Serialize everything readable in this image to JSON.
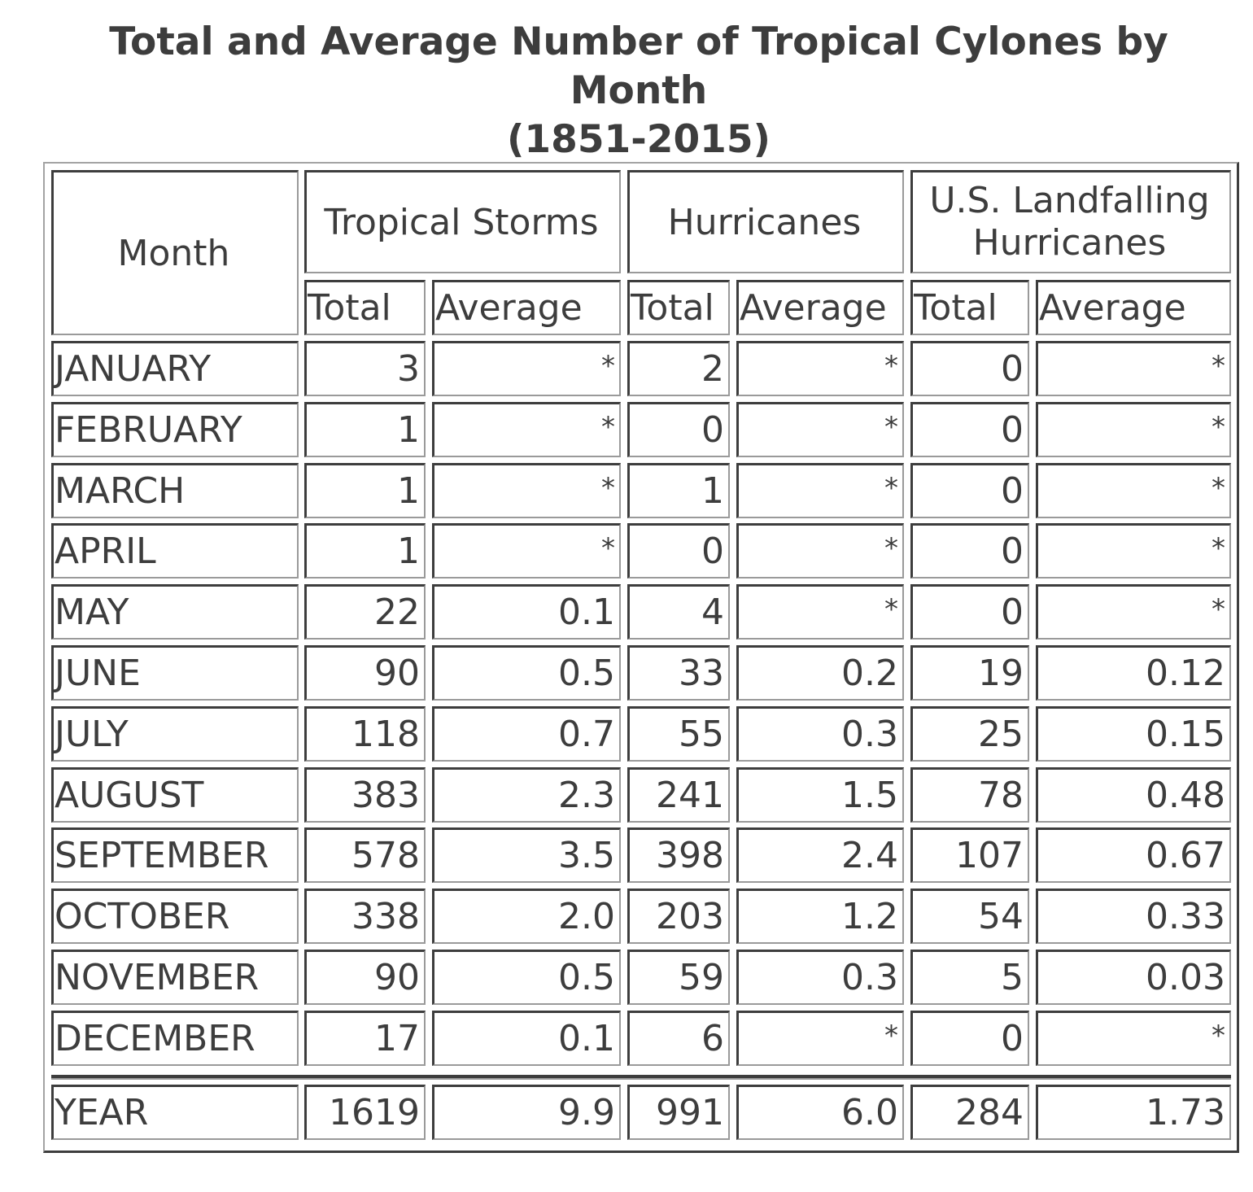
{
  "chart_data": {
    "type": "table",
    "title": [
      "Total and Average Number of Tropical Cylones by",
      "Month",
      "(1851-2015)"
    ],
    "header": {
      "month": "Month",
      "groups": [
        "Tropical Storms",
        "Hurricanes",
        "U.S. Landfalling Hurricanes"
      ],
      "sub": [
        "Total",
        "Average",
        "Total",
        "Average",
        "Total",
        "Average"
      ]
    },
    "rows": [
      {
        "month": "JANUARY",
        "values": [
          "3",
          "*",
          "2",
          "*",
          "0",
          "*"
        ]
      },
      {
        "month": "FEBRUARY",
        "values": [
          "1",
          "*",
          "0",
          "*",
          "0",
          "*"
        ]
      },
      {
        "month": "MARCH",
        "values": [
          "1",
          "*",
          "1",
          "*",
          "0",
          "*"
        ]
      },
      {
        "month": "APRIL",
        "values": [
          "1",
          "*",
          "0",
          "*",
          "0",
          "*"
        ]
      },
      {
        "month": "MAY",
        "values": [
          "22",
          "0.1",
          "4",
          "*",
          "0",
          "*"
        ]
      },
      {
        "month": "JUNE",
        "values": [
          "90",
          "0.5",
          "33",
          "0.2",
          "19",
          "0.12"
        ]
      },
      {
        "month": "JULY",
        "values": [
          "118",
          "0.7",
          "55",
          "0.3",
          "25",
          "0.15"
        ]
      },
      {
        "month": "AUGUST",
        "values": [
          "383",
          "2.3",
          "241",
          "1.5",
          "78",
          "0.48"
        ]
      },
      {
        "month": "SEPTEMBER",
        "values": [
          "578",
          "3.5",
          "398",
          "2.4",
          "107",
          "0.67"
        ]
      },
      {
        "month": "OCTOBER",
        "values": [
          "338",
          "2.0",
          "203",
          "1.2",
          "54",
          "0.33"
        ]
      },
      {
        "month": "NOVEMBER",
        "values": [
          "90",
          "0.5",
          "59",
          "0.3",
          "5",
          "0.03"
        ]
      },
      {
        "month": "DECEMBER",
        "values": [
          "17",
          "0.1",
          "6",
          "*",
          "0",
          "*"
        ]
      }
    ],
    "total": {
      "month": "YEAR",
      "values": [
        "1619",
        "9.9",
        "991",
        "6.0",
        "284",
        "1.73"
      ]
    }
  }
}
